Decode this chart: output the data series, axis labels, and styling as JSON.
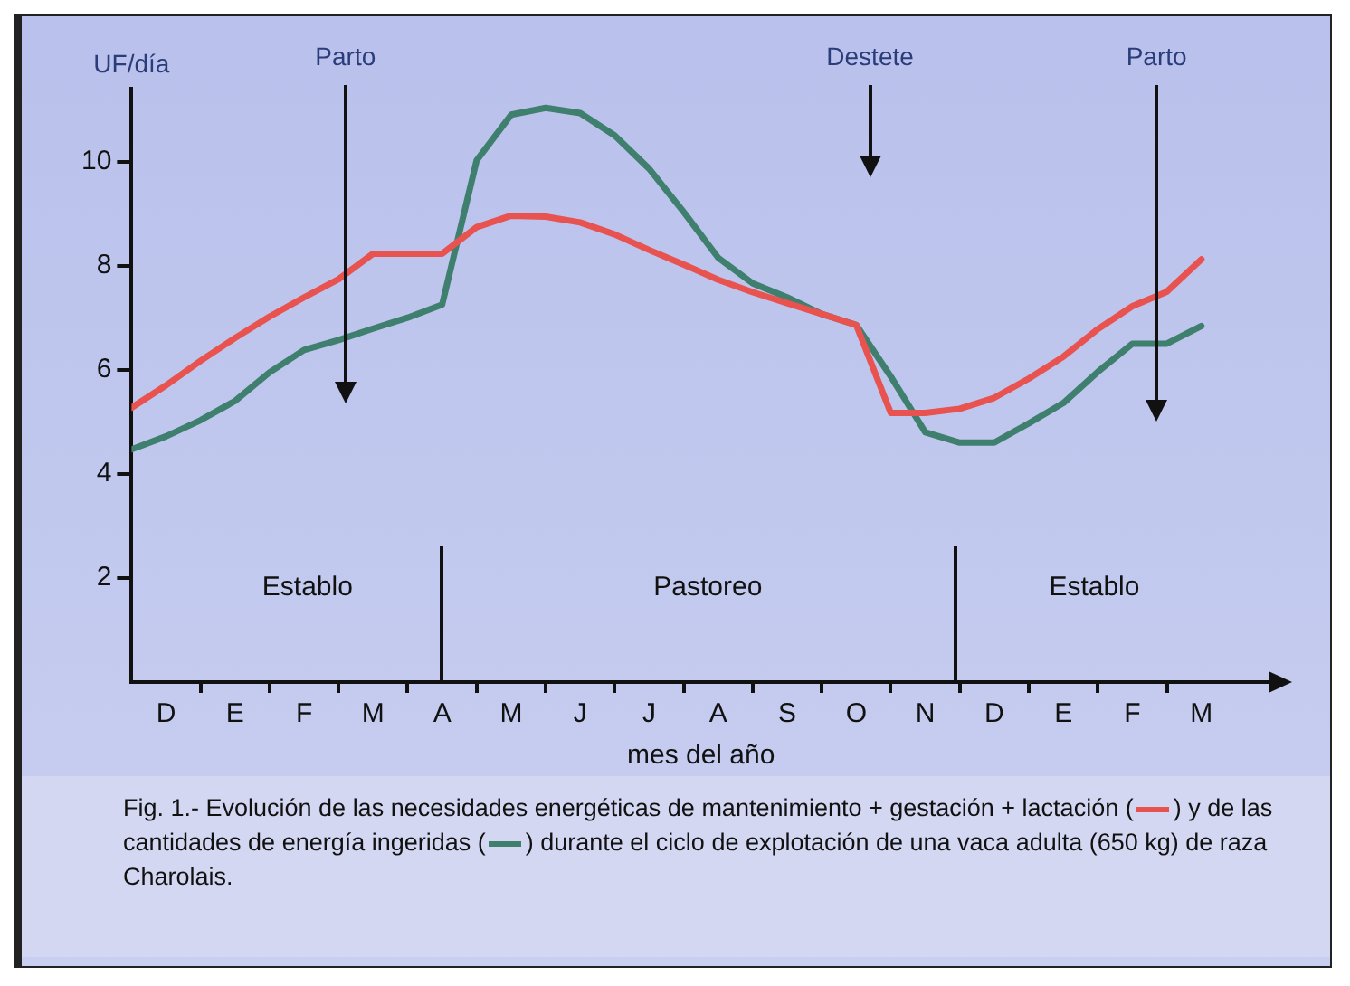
{
  "chart_data": {
    "type": "line",
    "xlabel": "mes del año",
    "ylabel": "UF/día",
    "categories": [
      null,
      "D",
      null,
      "E",
      null,
      "F",
      null,
      "M",
      null,
      "A",
      null,
      "M",
      null,
      "J",
      null,
      "J",
      null,
      "A",
      null,
      "S",
      null,
      "O",
      null,
      "N",
      null,
      "D",
      null,
      "E",
      null,
      "F",
      null,
      "M",
      null,
      null
    ],
    "ylim": [
      0,
      11.4
    ],
    "yticks": [
      2,
      4,
      6,
      8,
      10
    ],
    "grid": false,
    "legend": false,
    "marker": "none",
    "line_style": "solid",
    "series": [
      {
        "color": "#e8524f",
        "values": [
          5.27,
          5.7,
          6.17,
          6.61,
          7.02,
          7.39,
          7.74,
          8.23,
          8.23,
          8.23,
          8.74,
          8.96,
          8.94,
          8.83,
          8.6,
          8.3,
          8.02,
          7.73,
          7.49,
          7.28,
          7.07,
          6.86,
          5.17,
          5.17,
          5.25,
          5.46,
          5.83,
          6.25,
          6.78,
          7.22,
          7.5,
          8.12,
          null,
          null
        ]
      },
      {
        "color": "#3f7f6e",
        "values": [
          4.47,
          4.72,
          5.03,
          5.4,
          5.95,
          6.38,
          6.57,
          6.79,
          7.0,
          7.25,
          10.02,
          10.9,
          11.03,
          10.93,
          10.5,
          9.86,
          9.03,
          8.15,
          7.66,
          7.39,
          7.07,
          6.86,
          5.87,
          4.8,
          4.6,
          4.6,
          4.97,
          5.36,
          5.96,
          6.5,
          6.5,
          6.84,
          null,
          null
        ]
      }
    ],
    "annotations": [
      "Parto",
      "Destete",
      "Parto",
      "Establo",
      "Pastoreo",
      "Establo",
      "Fig. 1.- Evolución de las necesidades energéticas de mantenimiento + gestación + lactación (",
      ") y de las cantidades de energía ingeridas (",
      ") durante el ciclo de explotación de una vaca adulta (650 kg) de raza Charolais."
    ]
  }
}
